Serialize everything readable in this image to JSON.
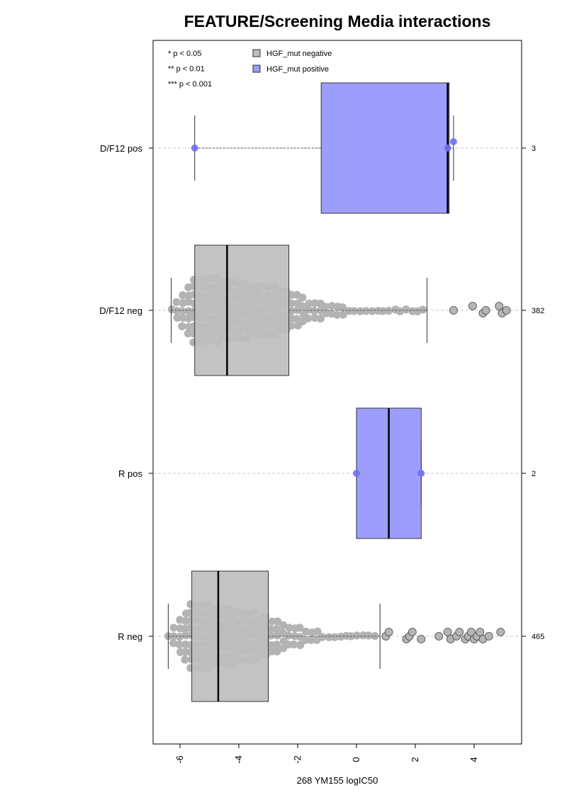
{
  "chart_data": {
    "type": "box",
    "orientation": "horizontal",
    "title": "FEATURE/Screening Media interactions",
    "xlabel": "268 YM155 logIC50",
    "ylabel": "",
    "xlim": [
      -6.9,
      5.5
    ],
    "x_ticks": [
      -6,
      -4,
      -2,
      0,
      2,
      4
    ],
    "x_tick_labels": [
      "-6",
      "-4",
      "-2",
      "0",
      "2",
      "4"
    ],
    "grid": "dashed horizontal line at each group",
    "legend_position": "top-left",
    "significance_legend": [
      "* p < 0.05",
      "** p < 0.01",
      "*** p < 0.001"
    ],
    "legend": [
      {
        "label": "HGF_mut negative",
        "color": "#bebebe"
      },
      {
        "label": "HGF_mut positive",
        "color": "#9d9dfc"
      }
    ],
    "colors": {
      "negative": "#bebebe",
      "positive": "#9d9dfc",
      "positive_point": "#6f6ff5",
      "negative_point": "#b3b3b3"
    },
    "groups": [
      {
        "label": "D/F12 pos",
        "count": "3",
        "series": "HGF_mut positive",
        "whisker_low": -5.5,
        "q1": -1.2,
        "median": 3.1,
        "q3": 3.15,
        "whisker_high": 3.3,
        "points": [
          -5.5,
          3.1,
          3.3
        ],
        "outliers": []
      },
      {
        "label": "D/F12 neg",
        "count": "382",
        "series": "HGF_mut negative",
        "whisker_low": -6.3,
        "q1": -5.5,
        "median": -4.4,
        "q3": -2.3,
        "whisker_high": 2.4,
        "min_point": -6.3,
        "max_inlier": 2.4,
        "outliers": [
          3.3,
          3.95,
          4.3,
          4.4,
          4.85,
          4.95,
          5.1
        ]
      },
      {
        "label": "R pos",
        "count": "2",
        "series": "HGF_mut positive",
        "whisker_low": 0.0,
        "q1": 0.0,
        "median": 1.1,
        "q3": 2.2,
        "whisker_high": 2.2,
        "points": [
          0.0,
          2.2
        ],
        "outliers": []
      },
      {
        "label": "R neg",
        "count": "465",
        "series": "HGF_mut negative",
        "whisker_low": -6.4,
        "q1": -5.6,
        "median": -4.7,
        "q3": -3.0,
        "whisker_high": 0.8,
        "min_point": -6.4,
        "max_inlier": 0.8,
        "outliers": [
          1.0,
          1.1,
          1.7,
          1.8,
          1.9,
          2.2,
          2.8,
          3.1,
          3.2,
          3.4,
          3.5,
          3.7,
          3.8,
          3.9,
          4.0,
          4.1,
          4.2,
          4.3,
          4.5,
          4.9
        ]
      }
    ]
  }
}
